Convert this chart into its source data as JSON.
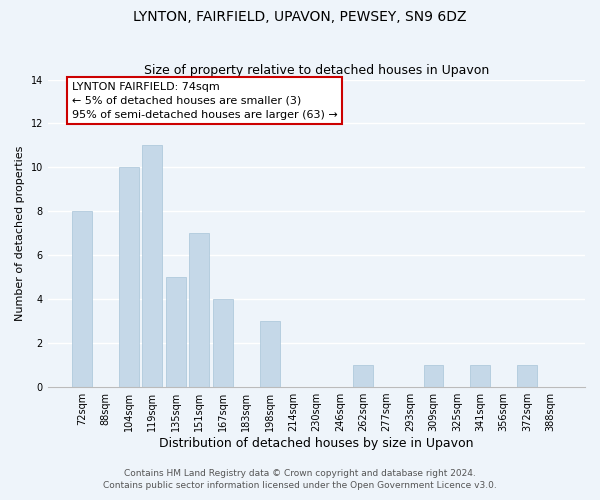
{
  "title": "LYNTON, FAIRFIELD, UPAVON, PEWSEY, SN9 6DZ",
  "subtitle": "Size of property relative to detached houses in Upavon",
  "xlabel": "Distribution of detached houses by size in Upavon",
  "ylabel": "Number of detached properties",
  "bar_labels": [
    "72sqm",
    "88sqm",
    "104sqm",
    "119sqm",
    "135sqm",
    "151sqm",
    "167sqm",
    "183sqm",
    "198sqm",
    "214sqm",
    "230sqm",
    "246sqm",
    "262sqm",
    "277sqm",
    "293sqm",
    "309sqm",
    "325sqm",
    "341sqm",
    "356sqm",
    "372sqm",
    "388sqm"
  ],
  "bar_values": [
    8,
    0,
    10,
    11,
    5,
    7,
    4,
    0,
    3,
    0,
    0,
    0,
    1,
    0,
    0,
    1,
    0,
    1,
    0,
    1,
    0
  ],
  "bar_color": "#c5d8e8",
  "annotation_line1": "LYNTON FAIRFIELD: 74sqm",
  "annotation_line2": "← 5% of detached houses are smaller (3)",
  "annotation_line3": "95% of semi-detached houses are larger (63) →",
  "ylim": [
    0,
    14
  ],
  "yticks": [
    0,
    2,
    4,
    6,
    8,
    10,
    12,
    14
  ],
  "footnote1": "Contains HM Land Registry data © Crown copyright and database right 2024.",
  "footnote2": "Contains public sector information licensed under the Open Government Licence v3.0.",
  "title_fontsize": 10,
  "subtitle_fontsize": 9,
  "xlabel_fontsize": 9,
  "ylabel_fontsize": 8,
  "tick_fontsize": 7,
  "annotation_fontsize": 8,
  "footnote_fontsize": 6.5,
  "background_color": "#eef4fa",
  "plot_background_color": "#eef4fa",
  "grid_color": "#ffffff",
  "annotation_box_color": "#ffffff",
  "annotation_box_edgecolor": "#cc0000"
}
